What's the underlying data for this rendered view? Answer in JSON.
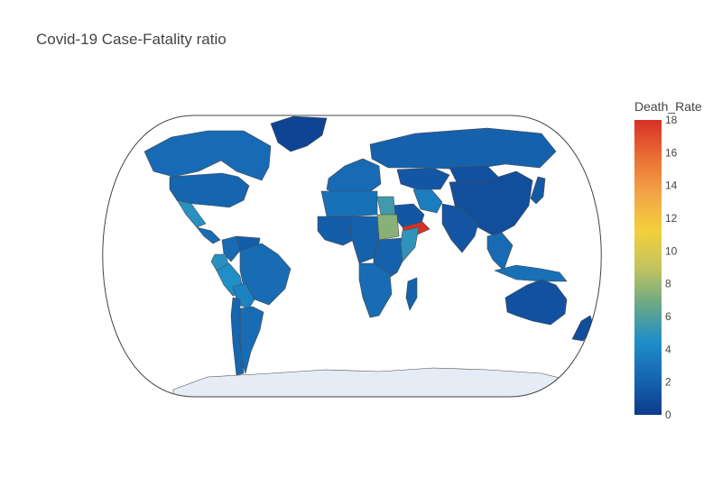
{
  "title": "Covid-19 Case-Fatality ratio",
  "colorbar": {
    "title": "Death_Rate",
    "min": 0,
    "max": 18,
    "ticks": [
      "0",
      "2",
      "4",
      "6",
      "8",
      "10",
      "12",
      "14",
      "16",
      "18"
    ],
    "colorscale": [
      "#0d3a8c",
      "#1666b0",
      "#1f8ec9",
      "#6aa886",
      "#c5c45f",
      "#f3d03a",
      "#f3a447",
      "#ea6e34",
      "#d73027"
    ]
  },
  "map": {
    "projection": "natural earth",
    "land_color": "#e5ecf6",
    "country_stroke": "#4a4a4a"
  },
  "chart_data": {
    "type": "choropleth",
    "value_label": "Death_Rate",
    "regions": [
      {
        "region": "Canada",
        "value": 2.5
      },
      {
        "region": "United States",
        "value": 2.2
      },
      {
        "region": "Greenland",
        "value": 0.5
      },
      {
        "region": "Mexico",
        "value": 4.8
      },
      {
        "region": "Central America",
        "value": 2.6
      },
      {
        "region": "Colombia",
        "value": 2.5
      },
      {
        "region": "Venezuela",
        "value": 1.8
      },
      {
        "region": "Ecuador",
        "value": 4.8
      },
      {
        "region": "Peru",
        "value": 4.5
      },
      {
        "region": "Brazil",
        "value": 2.6
      },
      {
        "region": "Bolivia",
        "value": 3.8
      },
      {
        "region": "Argentina",
        "value": 2.6
      },
      {
        "region": "Chile",
        "value": 2.2
      },
      {
        "region": "Western Europe",
        "value": 2.5
      },
      {
        "region": "Russia",
        "value": 2.0
      },
      {
        "region": "Kazakhstan",
        "value": 1.5
      },
      {
        "region": "China",
        "value": 1.0
      },
      {
        "region": "Mongolia",
        "value": 1.2
      },
      {
        "region": "India",
        "value": 1.4
      },
      {
        "region": "Iran",
        "value": 3.5
      },
      {
        "region": "Saudi Arabia",
        "value": 1.5
      },
      {
        "region": "Yemen",
        "value": 18.0
      },
      {
        "region": "Egypt",
        "value": 5.5
      },
      {
        "region": "Sudan",
        "value": 7.5
      },
      {
        "region": "Northern Africa",
        "value": 2.8
      },
      {
        "region": "Western Africa",
        "value": 1.8
      },
      {
        "region": "Central Africa",
        "value": 2.0
      },
      {
        "region": "Eastern Africa",
        "value": 2.0
      },
      {
        "region": "Somalia",
        "value": 5.0
      },
      {
        "region": "Southern Africa",
        "value": 2.6
      },
      {
        "region": "Madagascar",
        "value": 2.0
      },
      {
        "region": "Southeast Asia",
        "value": 2.5
      },
      {
        "region": "Indonesia",
        "value": 2.8
      },
      {
        "region": "Australia",
        "value": 1.2
      },
      {
        "region": "New Zealand",
        "value": 1.0
      },
      {
        "region": "Japan",
        "value": 1.6
      },
      {
        "region": "Antarctica",
        "value": null
      }
    ]
  }
}
